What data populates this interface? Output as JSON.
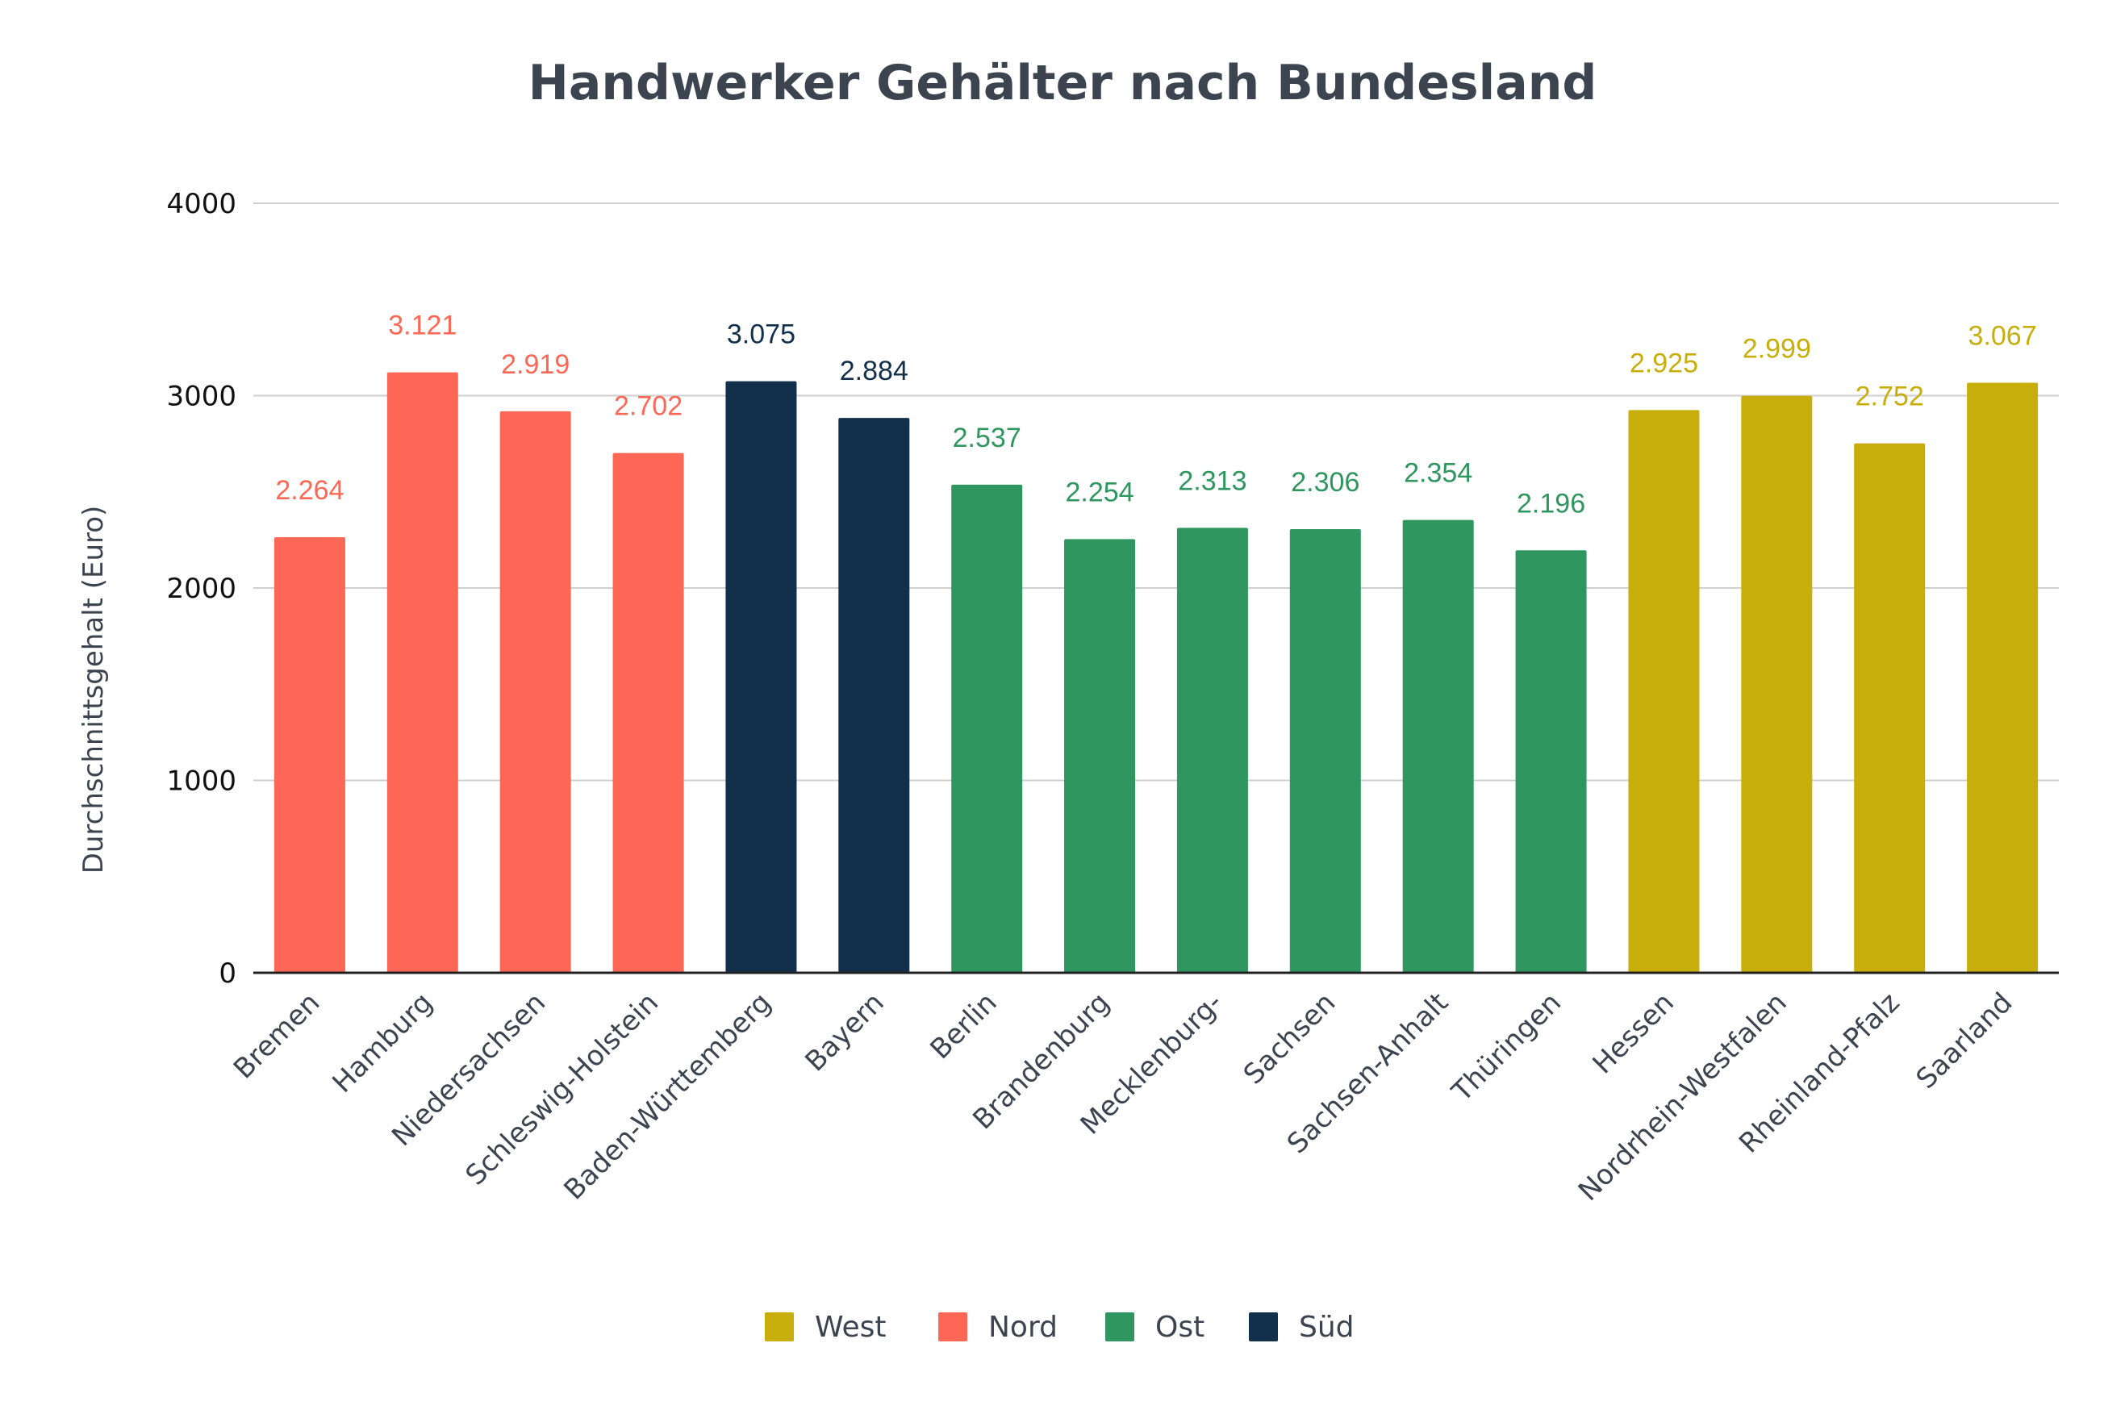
{
  "chart_data": {
    "type": "bar",
    "title": "Handwerker Gehälter nach Bundesland",
    "ylabel": "Durchschnittsgehalt (Euro)",
    "xlabel": "",
    "ylim": [
      0,
      4000
    ],
    "yticks": [
      "0",
      "1000",
      "2000",
      "3000",
      "4000"
    ],
    "grid": true,
    "legend_position": "bottom",
    "categories": [
      "Bremen",
      "Hamburg",
      "Niedersachsen",
      "Schleswig-Holstein",
      "Baden-Württemberg",
      "Bayern",
      "Berlin",
      "Brandenburg",
      "Mecklenburg-",
      "Sachsen",
      "Sachsen-Anhalt",
      "Thüringen",
      "Hessen",
      "Nordrhein-Westfalen",
      "Rheinland-Pfalz",
      "Saarland"
    ],
    "values": [
      2264,
      3121,
      2919,
      2702,
      3075,
      2884,
      2537,
      2254,
      2313,
      2306,
      2354,
      2196,
      2925,
      2999,
      2752,
      3067
    ],
    "value_labels": [
      "2.264",
      "3.121",
      "2.919",
      "2.702",
      "3.075",
      "2.884",
      "2.537",
      "2.254",
      "2.313",
      "2.306",
      "2.354",
      "2.196",
      "2.925",
      "2.999",
      "2.752",
      "3.067"
    ],
    "groups": [
      "Nord",
      "Nord",
      "Nord",
      "Nord",
      "Süd",
      "Süd",
      "Ost",
      "Ost",
      "Ost",
      "Ost",
      "Ost",
      "Ost",
      "West",
      "West",
      "West",
      "West"
    ],
    "legend": [
      {
        "name": "West",
        "color": "#c8ae0b"
      },
      {
        "name": "Nord",
        "color": "#fe6655"
      },
      {
        "name": "Ost",
        "color": "#2f9660"
      },
      {
        "name": "Süd",
        "color": "#12304c"
      }
    ]
  }
}
